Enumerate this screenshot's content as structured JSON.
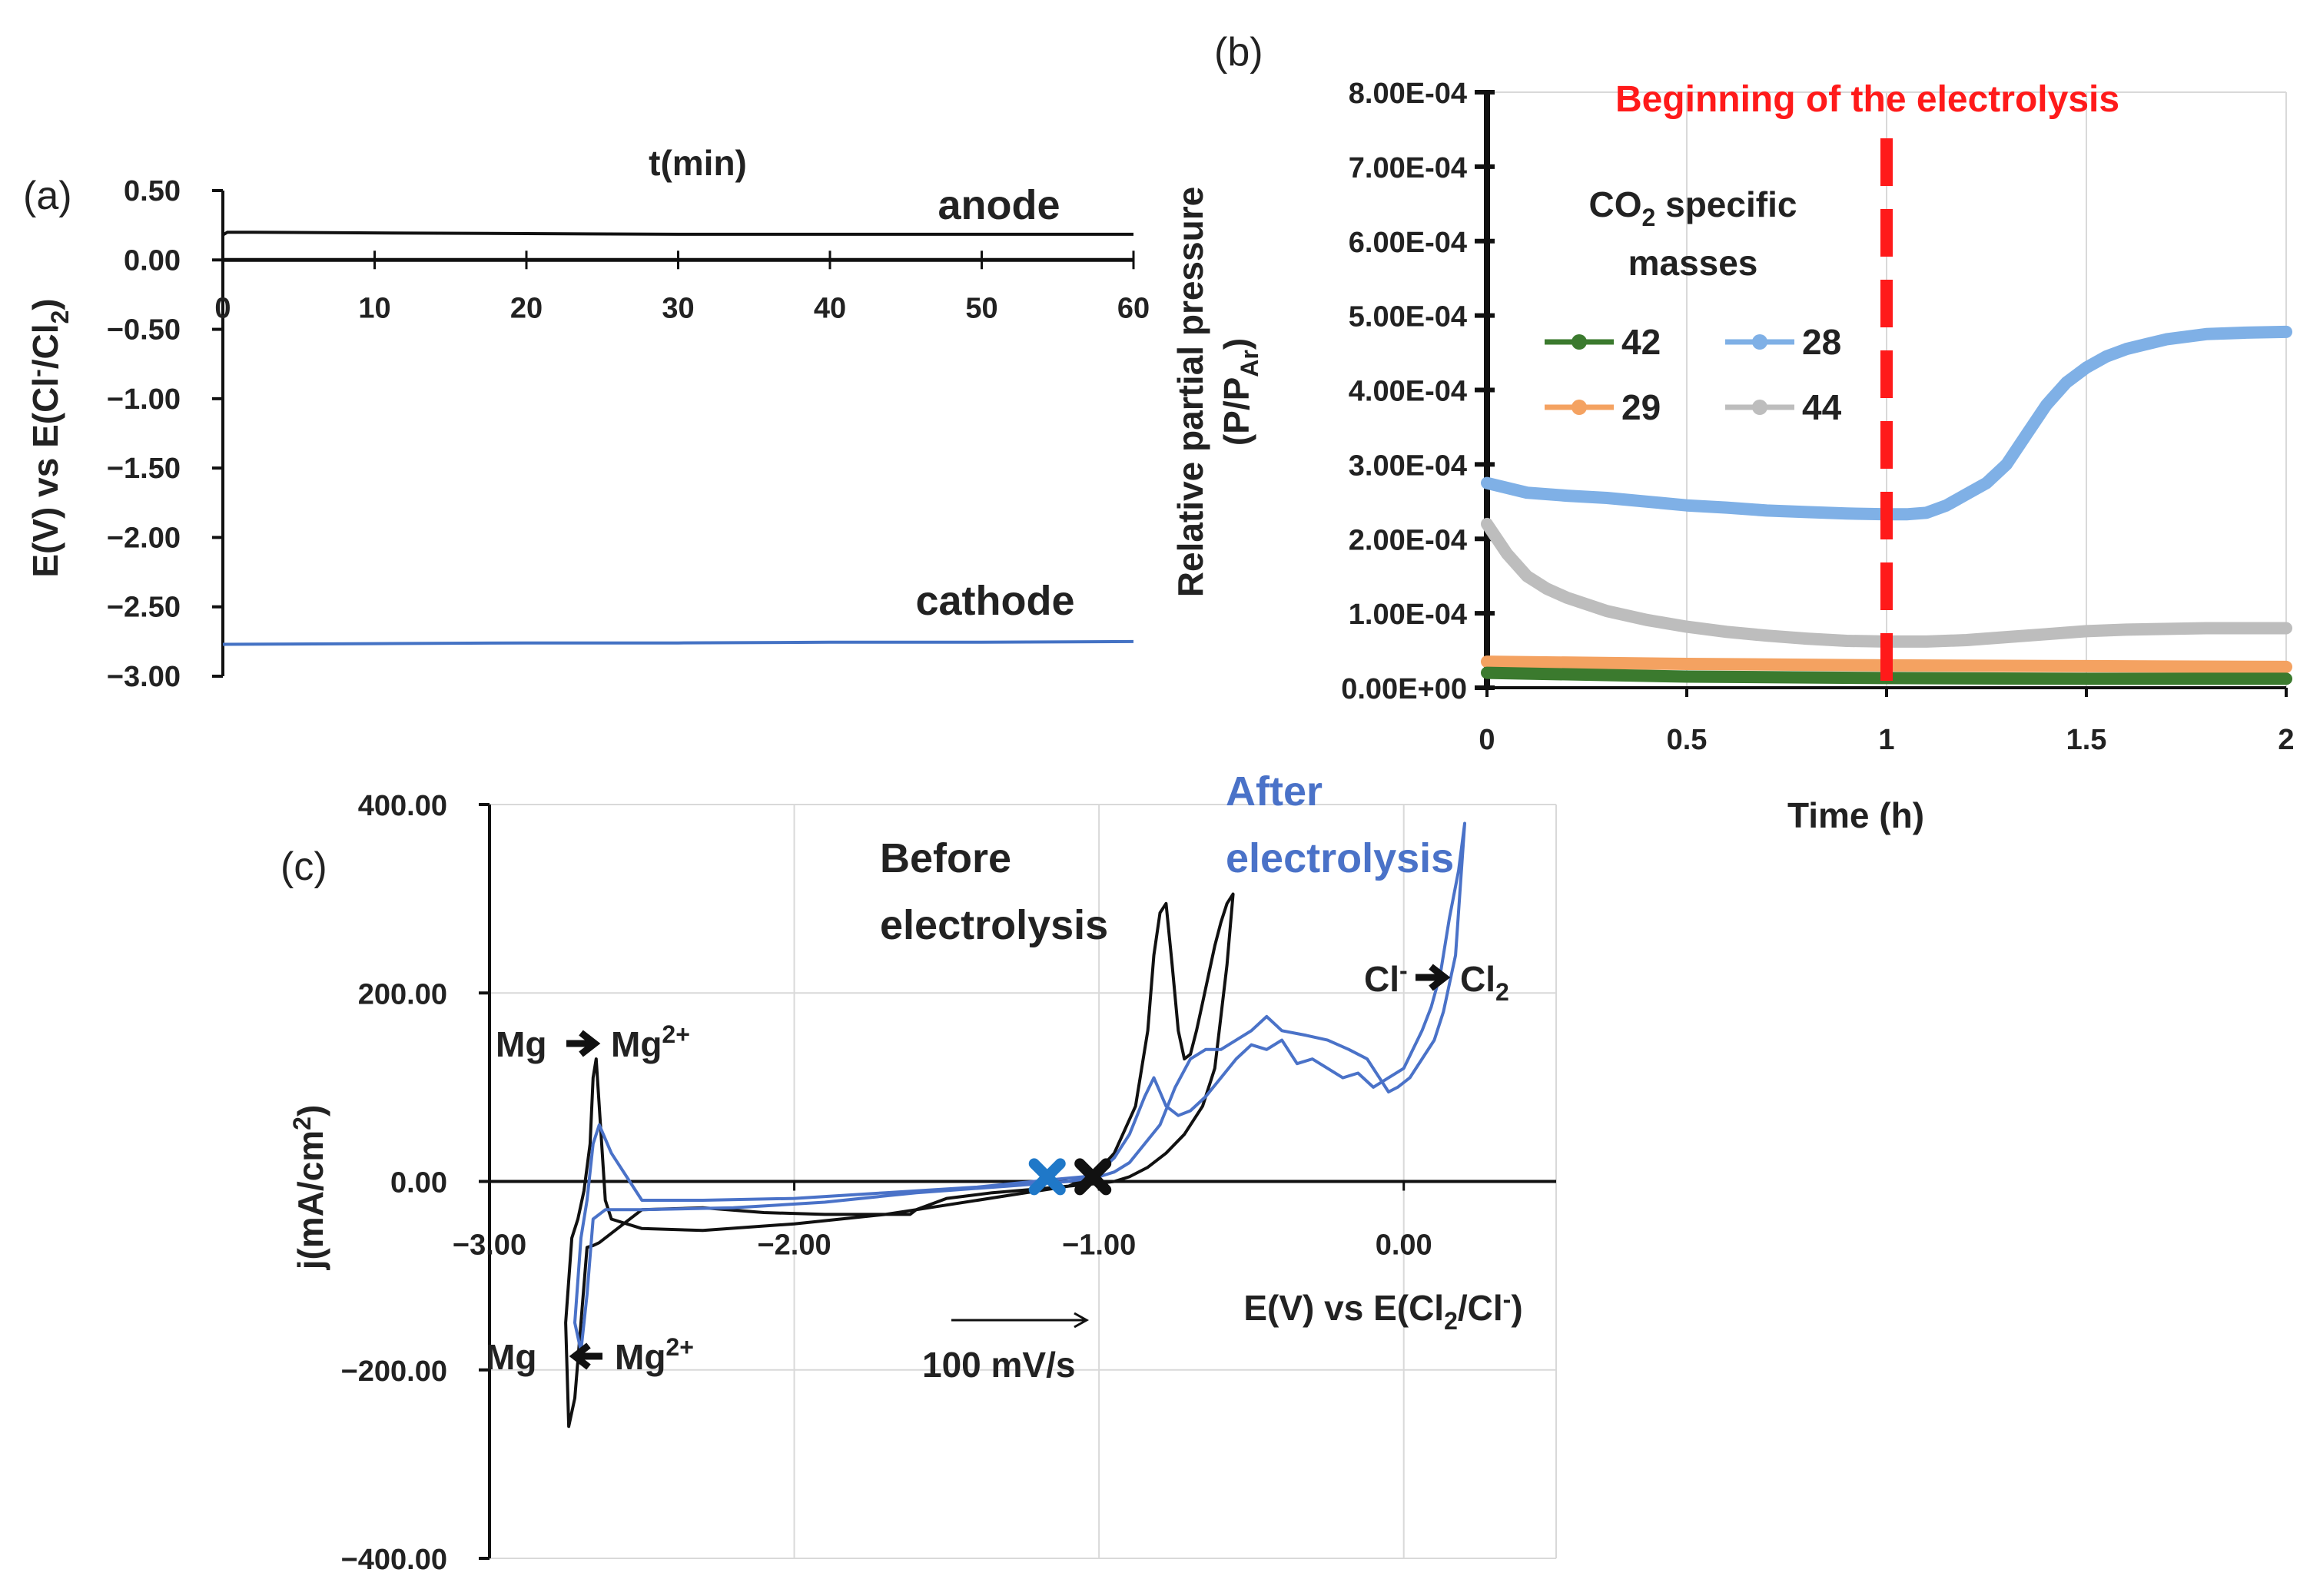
{
  "panels": {
    "a": "(a)",
    "b": "(b)",
    "c": "(c)"
  },
  "colors": {
    "black": "#111111",
    "blue": "#4472C4",
    "blue_b": "#7FB0E6",
    "green": "#3B7A2E",
    "orange": "#F4A261",
    "gray": "#BDBDBD",
    "red": "#FF1A1A",
    "grid": "#D9D9D9",
    "cv_after": "#4A72C8",
    "cross_blue": "#1F78C8"
  },
  "chart_data": [
    {
      "id": "a",
      "type": "line",
      "title": "t(min)",
      "ylabel": "E(V) vs E(Cl",
      "ylabel_sup": "-",
      "ylabel_mid": "/Cl",
      "ylabel_sub": "2",
      "ylabel_end": ")",
      "xlim": [
        0,
        60
      ],
      "ylim": [
        -3.0,
        0.5
      ],
      "x_ticks": [
        "0",
        "10",
        "20",
        "30",
        "40",
        "50",
        "60"
      ],
      "x_tick_values": [
        0,
        10,
        20,
        30,
        40,
        50,
        60
      ],
      "y_ticks": [
        "0.50",
        "0.00",
        "−0.50",
        "−1.00",
        "−1.50",
        "−2.00",
        "−2.50",
        "−3.00"
      ],
      "y_tick_values": [
        0.5,
        0.0,
        -0.5,
        -1.0,
        -1.5,
        -2.0,
        -2.5,
        -3.0
      ],
      "series": [
        {
          "name": "anode",
          "color": "#111111",
          "x": [
            0,
            0.3,
            2,
            10,
            20,
            30,
            40,
            50,
            60
          ],
          "y": [
            0.18,
            0.2,
            0.2,
            0.195,
            0.19,
            0.185,
            0.185,
            0.185,
            0.185
          ]
        },
        {
          "name": "cathode",
          "color": "#4472C4",
          "x": [
            0,
            10,
            20,
            30,
            40,
            50,
            60
          ],
          "y": [
            -2.77,
            -2.765,
            -2.76,
            -2.76,
            -2.755,
            -2.755,
            -2.75
          ]
        }
      ],
      "annotations": [
        "anode",
        "cathode"
      ]
    },
    {
      "id": "b",
      "type": "line",
      "xlabel": "Time (h)",
      "ylabel_line1": "Relative partial pressure",
      "ylabel_line2_pre": "(P/P",
      "ylabel_line2_sub": "Ar",
      "ylabel_line2_post": ")",
      "xlim": [
        0,
        2
      ],
      "ylim": [
        0,
        0.0008
      ],
      "x_ticks": [
        "0",
        "0.5",
        "1",
        "1.5",
        "2"
      ],
      "x_tick_values": [
        0,
        0.5,
        1,
        1.5,
        2
      ],
      "y_ticks": [
        "8.00E-04",
        "7.00E-04",
        "6.00E-04",
        "5.00E-04",
        "4.00E-04",
        "3.00E-04",
        "2.00E-04",
        "1.00E-04",
        "0.00E+00"
      ],
      "y_tick_values": [
        0.0008,
        0.0007,
        0.0006,
        0.0005,
        0.0004,
        0.0003,
        0.0002,
        0.0001,
        0
      ],
      "legend_title_pre": "CO",
      "legend_title_sub": "2",
      "legend_title_post": " specific",
      "legend_title_line2": "masses",
      "series": [
        {
          "name": "42",
          "color": "#3B7A2E",
          "x": [
            0,
            0.5,
            1,
            1.5,
            2
          ],
          "y": [
            2e-05,
            1.5e-05,
            1.3e-05,
            1.2e-05,
            1.2e-05
          ]
        },
        {
          "name": "28",
          "color": "#7FB0E6",
          "x": [
            0,
            0.1,
            0.2,
            0.3,
            0.4,
            0.5,
            0.6,
            0.7,
            0.8,
            0.9,
            1.0,
            1.05,
            1.1,
            1.15,
            1.2,
            1.25,
            1.3,
            1.35,
            1.4,
            1.45,
            1.5,
            1.55,
            1.6,
            1.7,
            1.8,
            1.9,
            2.0
          ],
          "y": [
            0.000275,
            0.000262,
            0.000258,
            0.000255,
            0.00025,
            0.000245,
            0.000242,
            0.000238,
            0.000236,
            0.000234,
            0.000233,
            0.000233,
            0.000235,
            0.000245,
            0.00026,
            0.000275,
            0.0003,
            0.00034,
            0.00038,
            0.00041,
            0.00043,
            0.000445,
            0.000455,
            0.000468,
            0.000475,
            0.000477,
            0.000478
          ]
        },
        {
          "name": "29",
          "color": "#F4A261",
          "x": [
            0,
            0.5,
            1,
            1.5,
            2
          ],
          "y": [
            3.5e-05,
            3.2e-05,
            3e-05,
            2.9e-05,
            2.8e-05
          ]
        },
        {
          "name": "44",
          "color": "#BDBDBD",
          "x": [
            0,
            0.05,
            0.1,
            0.15,
            0.2,
            0.3,
            0.4,
            0.5,
            0.6,
            0.7,
            0.8,
            0.9,
            1.0,
            1.1,
            1.2,
            1.3,
            1.4,
            1.5,
            1.6,
            1.8,
            2.0
          ],
          "y": [
            0.00022,
            0.00018,
            0.00015,
            0.000133,
            0.000121,
            0.000103,
            9.1e-05,
            8.2e-05,
            7.5e-05,
            7e-05,
            6.6e-05,
            6.3e-05,
            6.2e-05,
            6.2e-05,
            6.4e-05,
            6.8e-05,
            7.2e-05,
            7.6e-05,
            7.8e-05,
            8e-05,
            8e-05
          ]
        }
      ],
      "vline_x": 1,
      "vline_label": "Beginning of the electrolysis"
    },
    {
      "id": "c",
      "type": "line",
      "xlabel_pre": "E(V) vs E(Cl",
      "xlabel_sub": "2",
      "xlabel_mid": "/Cl",
      "xlabel_sup": "-",
      "xlabel_end": ")",
      "ylabel_pre": "j(mA/cm",
      "ylabel_sup": "2",
      "ylabel_end": ")",
      "xlim": [
        -3.0,
        0.5
      ],
      "ylim": [
        -400,
        400
      ],
      "x_ticks": [
        "−3.00",
        "−2.00",
        "−1.00",
        "0.00"
      ],
      "x_tick_values": [
        -3.0,
        -2.0,
        -1.0,
        0.0
      ],
      "y_ticks": [
        "400.00",
        "200.00",
        "0.00",
        "−200.00",
        "−400.00"
      ],
      "y_tick_values": [
        400,
        200,
        0,
        -200,
        -400
      ],
      "series": [
        {
          "name": "Before electrolysis",
          "color": "#111111",
          "x": [
            -1.02,
            -0.95,
            -0.88,
            -0.84,
            -0.82,
            -0.8,
            -0.78,
            -0.76,
            -0.74,
            -0.72,
            -0.7,
            -0.68,
            -0.66,
            -0.64,
            -0.62,
            -0.6,
            -0.58,
            -0.56,
            -0.58,
            -0.62,
            -0.66,
            -0.72,
            -0.78,
            -0.84,
            -0.9,
            -0.95,
            -1.0,
            -1.1,
            -1.2,
            -1.35,
            -1.5,
            -1.6,
            -1.62,
            -1.7,
            -1.9,
            -2.1,
            -2.3,
            -2.5,
            -2.6,
            -2.64,
            -2.66,
            -2.68,
            -2.7,
            -2.72,
            -2.74,
            -2.75,
            -2.73,
            -2.71,
            -2.69,
            -2.67,
            -2.66,
            -2.65,
            -2.64,
            -2.62,
            -2.6,
            -2.5,
            -2.3,
            -2.0,
            -1.7,
            -1.5,
            -1.3,
            -1.1,
            -1.02
          ],
          "y": [
            5,
            30,
            80,
            160,
            240,
            285,
            295,
            230,
            160,
            130,
            135,
            160,
            190,
            220,
            250,
            275,
            295,
            305,
            230,
            120,
            80,
            50,
            30,
            15,
            5,
            0,
            -2,
            -5,
            -8,
            -12,
            -18,
            -30,
            -35,
            -35,
            -35,
            -33,
            -28,
            -30,
            -55,
            -65,
            -68,
            -70,
            -150,
            -230,
            -260,
            -150,
            -60,
            -40,
            -10,
            40,
            110,
            130,
            80,
            -20,
            -40,
            -50,
            -52,
            -45,
            -35,
            -25,
            -15,
            -5,
            5
          ]
        },
        {
          "name": "After electrolysis",
          "color": "#4A72C8",
          "x": [
            -1.15,
            -1.05,
            -1.0,
            -0.95,
            -0.9,
            -0.85,
            -0.82,
            -0.8,
            -0.78,
            -0.74,
            -0.7,
            -0.65,
            -0.6,
            -0.55,
            -0.5,
            -0.45,
            -0.4,
            -0.35,
            -0.3,
            -0.25,
            -0.2,
            -0.15,
            -0.1,
            -0.05,
            0.0,
            0.03,
            0.06,
            0.09,
            0.12,
            0.15,
            0.18,
            0.2,
            0.17,
            0.13,
            0.1,
            0.06,
            0.02,
            -0.02,
            -0.05,
            -0.08,
            -0.12,
            -0.18,
            -0.25,
            -0.32,
            -0.4,
            -0.45,
            -0.5,
            -0.55,
            -0.6,
            -0.65,
            -0.7,
            -0.75,
            -0.8,
            -0.85,
            -0.9,
            -0.95,
            -1.0,
            -1.1,
            -1.3,
            -1.6,
            -1.9,
            -2.2,
            -2.5,
            -2.62,
            -2.66,
            -2.68,
            -2.7,
            -2.72,
            -2.7,
            -2.68,
            -2.66,
            -2.64,
            -2.6,
            -2.5,
            -2.3,
            -2.0,
            -1.7,
            -1.4,
            -1.15
          ],
          "y": [
            2,
            5,
            10,
            25,
            50,
            90,
            110,
            95,
            80,
            70,
            75,
            90,
            110,
            130,
            145,
            140,
            150,
            125,
            130,
            120,
            110,
            115,
            100,
            110,
            120,
            140,
            160,
            185,
            220,
            280,
            330,
            380,
            240,
            180,
            150,
            130,
            110,
            100,
            95,
            110,
            130,
            140,
            150,
            155,
            160,
            175,
            160,
            150,
            140,
            140,
            130,
            100,
            60,
            40,
            20,
            10,
            5,
            0,
            -5,
            -12,
            -22,
            -28,
            -30,
            -30,
            -40,
            -120,
            -180,
            -150,
            -60,
            -20,
            40,
            60,
            30,
            -20,
            -20,
            -18,
            -12,
            -6,
            2
          ]
        }
      ],
      "annotations": {
        "before_line1": "Before",
        "before_line2": "electrolysis",
        "after_line1": "After",
        "after_line2": "electrolysis",
        "cl_pre": "Cl",
        "cl_sup": "-",
        "cl_to": "Cl",
        "cl_sub": "2",
        "mg_ox_from": "Mg",
        "mg_ox_to": "Mg",
        "mg_ox_sup": "2+",
        "mg_red_to": "Mg",
        "mg_red_from": "Mg",
        "mg_red_sup": "2+",
        "scan_rate": "100 mV/s"
      },
      "markers": [
        {
          "name": "after-start",
          "x": -1.17,
          "y": 5,
          "color": "#1F78C8"
        },
        {
          "name": "before-start",
          "x": -1.02,
          "y": 5,
          "color": "#111111"
        }
      ]
    }
  ]
}
